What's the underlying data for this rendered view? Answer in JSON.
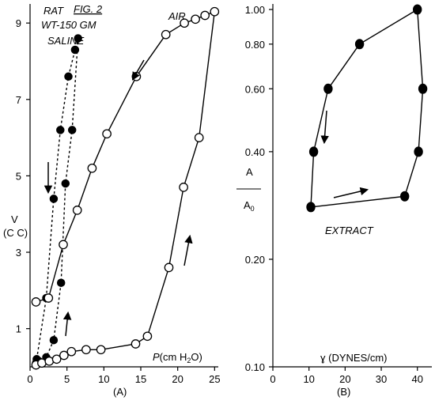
{
  "colors": {
    "ink": "#000000",
    "paper": "#ffffff"
  },
  "chart_data": [
    {
      "type": "scatter",
      "panel_label": "(A)",
      "annotations": {
        "fig": "FIG. 2",
        "rat": "RAT",
        "weight": "WT-150 GM",
        "saline": "SALINE",
        "air": "AIR"
      },
      "ylabel": {
        "line1": "V",
        "line2": "(C C)"
      },
      "xlabel": {
        "prefix": "P",
        "body": "(cm H",
        "sub": "2",
        "suffix": "O)"
      },
      "xlim": [
        0,
        25.5
      ],
      "ylim": [
        0,
        9.5
      ],
      "xticks": [
        0,
        5,
        10,
        15,
        20,
        25
      ],
      "xtick_labels": [
        "0",
        "5",
        "10",
        "15",
        "20",
        "25"
      ],
      "yticks": [
        1,
        3,
        5,
        7,
        9
      ],
      "ytick_labels": [
        "1",
        "3",
        "5",
        "7",
        "9"
      ],
      "series": [
        {
          "name": "SALINE",
          "marker": "filled",
          "line": "dotted",
          "points": [
            [
              0.8,
              0.1
            ],
            [
              1.2,
              0.15
            ],
            [
              2.2,
              0.25
            ],
            [
              3.2,
              0.7
            ],
            [
              4.2,
              2.2
            ],
            [
              4.8,
              4.8
            ],
            [
              5.7,
              6.2
            ],
            [
              6.5,
              8.6
            ],
            [
              6.1,
              8.3
            ],
            [
              5.2,
              7.6
            ],
            [
              4.1,
              6.2
            ],
            [
              3.2,
              4.4
            ],
            [
              2.2,
              1.8
            ],
            [
              0.9,
              0.2
            ]
          ]
        },
        {
          "name": "AIR",
          "marker": "open",
          "line": "solid",
          "points": [
            [
              0.8,
              0.05
            ],
            [
              1.6,
              0.1
            ],
            [
              2.6,
              0.15
            ],
            [
              3.6,
              0.2
            ],
            [
              4.6,
              0.3
            ],
            [
              5.6,
              0.4
            ],
            [
              7.6,
              0.45
            ],
            [
              9.6,
              0.45
            ],
            [
              14.3,
              0.6
            ],
            [
              15.9,
              0.8
            ],
            [
              18.8,
              2.6
            ],
            [
              20.8,
              4.7
            ],
            [
              22.9,
              6.0
            ],
            [
              25.0,
              9.3
            ],
            [
              23.7,
              9.2
            ],
            [
              22.4,
              9.1
            ],
            [
              20.9,
              9.0
            ],
            [
              18.4,
              8.7
            ],
            [
              14.4,
              7.6
            ],
            [
              10.4,
              6.1
            ],
            [
              8.4,
              5.2
            ],
            [
              6.4,
              4.1
            ],
            [
              4.5,
              3.2
            ],
            [
              2.5,
              1.8
            ],
            [
              0.8,
              1.7
            ]
          ]
        }
      ],
      "arrows": [
        "down-left",
        "down",
        "up",
        "up"
      ]
    },
    {
      "type": "scatter",
      "panel_label": "(B)",
      "annotations": {
        "extract": "EXTRACT"
      },
      "ylabel": {
        "top": "A",
        "bottom": "A",
        "bottom_sub": "0"
      },
      "xlabel": {
        "symbol": "ɣ",
        "text": " (DYNES/cm)"
      },
      "xscale": "linear",
      "yscale": "log",
      "xlim": [
        0,
        44
      ],
      "ylim": [
        0.1,
        1.0
      ],
      "xticks": [
        0,
        10,
        20,
        30,
        40
      ],
      "xtick_labels": [
        "0",
        "10",
        "20",
        "30",
        "40"
      ],
      "yticks": [
        0.1,
        0.2,
        0.4,
        0.6,
        0.8,
        1.0
      ],
      "ytick_labels": [
        "0.10",
        "0.20",
        "0.40",
        "0.60",
        "0.80",
        "1.00"
      ],
      "series": [
        {
          "name": "EXTRACT",
          "marker": "filled",
          "line": "solid",
          "points": [
            [
              10.5,
              0.28
            ],
            [
              36.5,
              0.3
            ],
            [
              40.3,
              0.4
            ],
            [
              41.5,
              0.6
            ],
            [
              40.0,
              1.0
            ],
            [
              24.0,
              0.8
            ],
            [
              15.3,
              0.6
            ],
            [
              11.3,
              0.4
            ],
            [
              10.5,
              0.28
            ]
          ]
        }
      ],
      "arrows": [
        "down",
        "right"
      ]
    }
  ]
}
